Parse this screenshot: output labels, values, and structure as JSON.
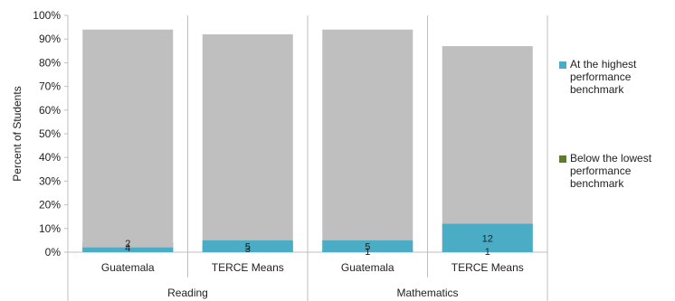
{
  "chart_data": {
    "type": "stacked-bar",
    "ylabel": "Percent of Students",
    "yticks": [
      "0%",
      "10%",
      "20%",
      "30%",
      "40%",
      "50%",
      "60%",
      "70%",
      "80%",
      "90%",
      "100%"
    ],
    "ylim": [
      0,
      100
    ],
    "groups": [
      "Reading",
      "Mathematics"
    ],
    "categories": [
      "Guatemala",
      "TERCE Means",
      "Guatemala",
      "TERCE Means"
    ],
    "category_groups": [
      0,
      0,
      1,
      1
    ],
    "series": [
      {
        "name": "Below the lowest performance benchmark",
        "values": [
          4,
          3,
          1,
          1
        ],
        "labels": [
          "4",
          "3",
          "1",
          "1"
        ],
        "color": "#5e7a2b"
      },
      {
        "values": [
          94,
          92,
          94,
          87
        ],
        "color": "#bfbfbf"
      },
      {
        "name": "At the highest performance benchmark",
        "values": [
          2,
          5,
          5,
          12
        ],
        "labels": [
          "2",
          "5",
          "5",
          "12"
        ],
        "color": "#4bacc6"
      }
    ],
    "grid": false,
    "legend_position": "right"
  }
}
